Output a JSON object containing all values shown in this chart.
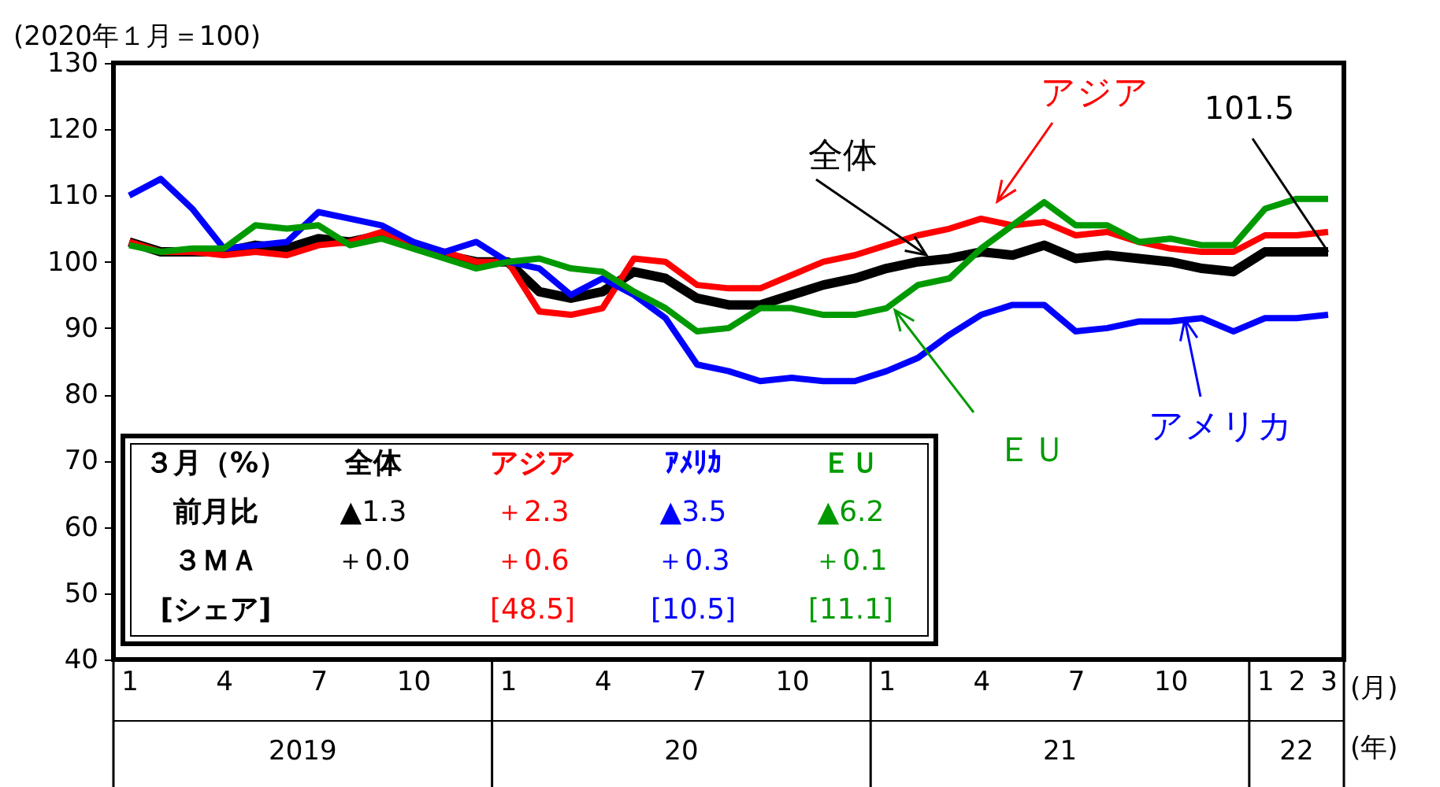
{
  "chart_data": {
    "type": "line",
    "ylabel": "(2020年１月＝100)",
    "categories": [
      "1",
      null,
      null,
      "4",
      null,
      null,
      "7",
      null,
      null,
      "10",
      null,
      null,
      "1",
      null,
      null,
      "4",
      null,
      null,
      "7",
      null,
      null,
      "10",
      null,
      null,
      "1",
      null,
      null,
      "4",
      null,
      null,
      "7",
      null,
      null,
      "10",
      null,
      null,
      "1",
      "2",
      "3"
    ],
    "ylim": [
      40,
      130
    ],
    "yticks": [
      40,
      50,
      60,
      70,
      80,
      90,
      100,
      110,
      120,
      130
    ],
    "grid": false,
    "series": [
      {
        "name": "全体",
        "color": "#000000",
        "values": [
          103,
          101.5,
          101.5,
          101.5,
          102.5,
          102,
          103.5,
          103,
          104,
          102.5,
          101,
          100,
          100,
          95.5,
          94.5,
          95.5,
          98.5,
          97.5,
          94.5,
          93.5,
          93.5,
          95,
          96.5,
          97.5,
          99,
          100,
          100.5,
          101.5,
          101,
          102.5,
          100.5,
          101,
          100.5,
          100,
          99,
          98.5,
          101.5,
          101.5,
          101.5
        ]
      },
      {
        "name": "アジア",
        "color": "#ff0000",
        "values": [
          103,
          101.5,
          101.5,
          101,
          101.5,
          101,
          102.5,
          103,
          104.5,
          102.5,
          101.5,
          100,
          100,
          92.5,
          92,
          93,
          100.5,
          100,
          96.5,
          96,
          96,
          98,
          100,
          101,
          102.5,
          104,
          105,
          106.5,
          105.5,
          106,
          104,
          104.5,
          103,
          102,
          101.5,
          101.5,
          104,
          104,
          104.5
        ]
      },
      {
        "name": "アメリカ",
        "color": "#0000ff",
        "values": [
          110,
          112.5,
          108,
          102,
          102.5,
          103,
          107.5,
          106.5,
          105.5,
          103,
          101.5,
          103,
          100,
          99,
          95,
          97.5,
          95,
          91.5,
          84.5,
          83.5,
          82,
          82.5,
          82,
          82,
          83.5,
          85.5,
          89,
          92,
          93.5,
          93.5,
          89.5,
          90,
          91,
          91,
          91.5,
          89.5,
          91.5,
          91.5,
          92
        ]
      },
      {
        "name": "ＥＵ",
        "color": "#009a00",
        "values": [
          102.5,
          101.5,
          102,
          102,
          105.5,
          105,
          105.5,
          102.5,
          103.5,
          102,
          100.5,
          99,
          100,
          100.5,
          99,
          98.5,
          95.5,
          93,
          89.5,
          90,
          93,
          93,
          92,
          92,
          93,
          96.5,
          97.5,
          102,
          105.5,
          109,
          105.5,
          105.5,
          103,
          103.5,
          102.5,
          102.5,
          108,
          109.5,
          109.5
        ]
      }
    ],
    "annotations": [
      "2019",
      "20",
      "21",
      "22",
      "(月)",
      "(年)",
      "３月（%）",
      "全体",
      "アジア",
      "ｱﾒﾘｶ",
      "ＥＵ",
      "前月比",
      "▲1.3",
      "＋2.3",
      "▲3.5",
      "▲6.2",
      "３ＭＡ",
      "＋0.0",
      "＋0.6",
      "＋0.3",
      "＋0.1",
      "[シェア]",
      "[48.5]",
      "[10.5]",
      "[11.1]",
      {
        "text": "101.5",
        "x": "3",
        "y": 101.5
      }
    ]
  }
}
